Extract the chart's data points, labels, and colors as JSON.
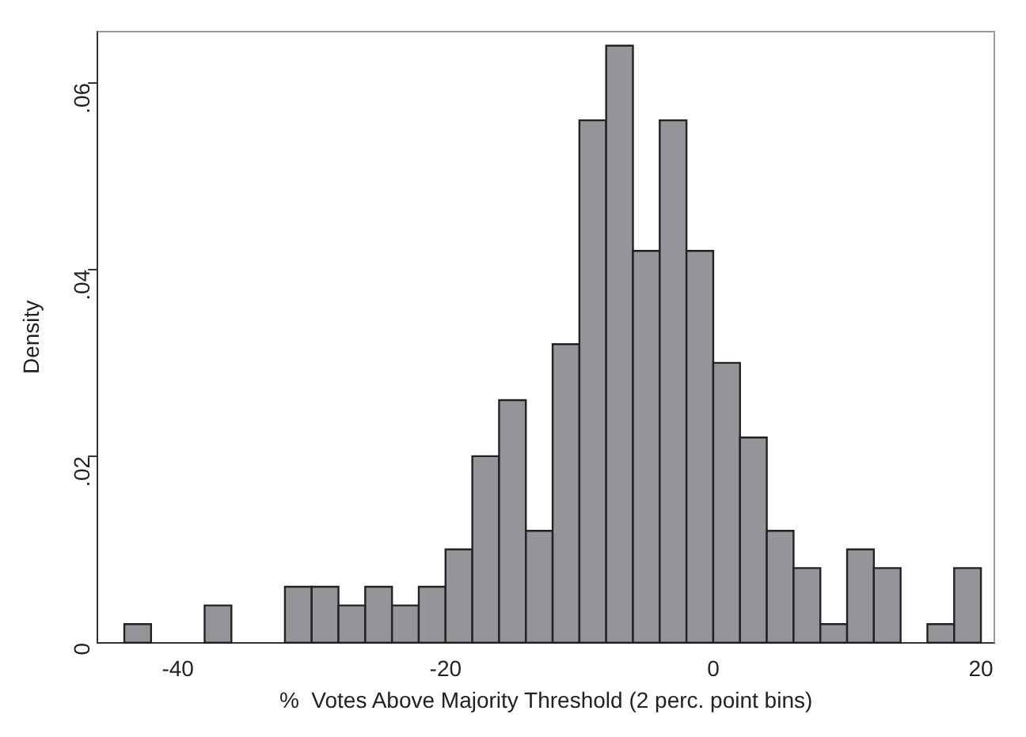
{
  "chart_data": {
    "type": "histogram",
    "xlabel": "%  Votes Above Majority Threshold (2 perc. point bins)",
    "ylabel": "Density",
    "bins": [
      -44,
      -42,
      -40,
      -38,
      -36,
      -34,
      -32,
      -30,
      -28,
      -26,
      -24,
      -22,
      -20,
      -18,
      -16,
      -14,
      -12,
      -10,
      -8,
      -6,
      -4,
      -2,
      0,
      2,
      4,
      6,
      8,
      10,
      12,
      14,
      16,
      18,
      20
    ],
    "values": [
      0.002,
      0,
      0,
      0.004,
      0,
      0,
      0.006,
      0.006,
      0.004,
      0.006,
      0.004,
      0.006,
      0.01,
      0.02,
      0.026,
      0.012,
      0.032,
      0.056,
      0.064,
      0.042,
      0.056,
      0.042,
      0.03,
      0.022,
      0.012,
      0.008,
      0.002,
      0.01,
      0.008,
      0,
      0.002,
      0.008
    ],
    "color": "#939598",
    "xlim": [
      -46,
      21
    ],
    "xticks": [
      -40,
      -20,
      0,
      20
    ],
    "ylim": [
      0,
      0.0655
    ],
    "yticks": [
      {
        "value": 0,
        "label": "0"
      },
      {
        "value": 0.02,
        "label": ".02"
      },
      {
        "value": 0.04,
        "label": ".04"
      },
      {
        "value": 0.06,
        "label": ".06"
      }
    ],
    "grid": false,
    "legend": false
  }
}
